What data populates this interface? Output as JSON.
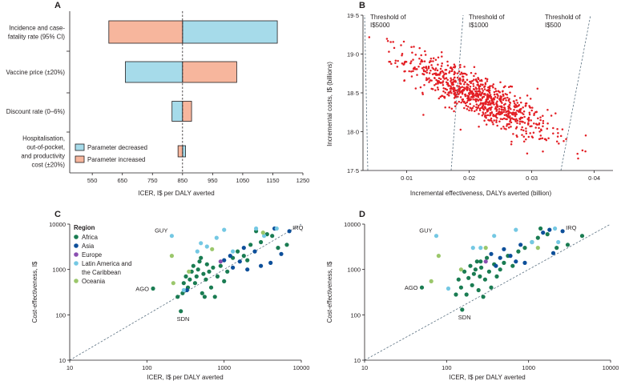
{
  "figure": {
    "colors": {
      "decreased": "#a6dbea",
      "increased": "#f7b69d",
      "scatter_b": "#e31e24",
      "africa": "#1a7c52",
      "asia": "#0d4f9a",
      "europe": "#8a4fb0",
      "latin": "#74c8e3",
      "oceania": "#9bc76b",
      "axis": "#231f20",
      "guide": "#5a7080"
    }
  },
  "chart_data": [
    {
      "panel": "A",
      "type": "bar",
      "subtype": "tornado",
      "xlabel": "ICER, I$ per DALY averted",
      "xlim": [
        475,
        1250
      ],
      "xticks": [
        550,
        650,
        750,
        850,
        950,
        1050,
        1150,
        1250
      ],
      "base_value": 850,
      "categories": [
        [
          "Incidence and case-",
          "fatality rate (95% CI)"
        ],
        [
          "Vaccine price (±20%)"
        ],
        [
          "Discount rate (0–6%)"
        ],
        [
          "Hospitalisation,",
          "out-of-pocket,",
          "and productivity",
          "cost (±20%)"
        ]
      ],
      "series": [
        {
          "name": "Parameter decreased",
          "values": [
            1165,
            660,
            815,
            860
          ]
        },
        {
          "name": "Parameter increased",
          "values": [
            605,
            1030,
            880,
            835
          ]
        }
      ],
      "legend": "bottom-right"
    },
    {
      "panel": "B",
      "type": "scatter",
      "xlabel": "Incremental effectiveness, DALYs averted (billion)",
      "ylabel": "Incremental costs, I$ (billions)",
      "xlim": [
        0.003,
        0.043
      ],
      "ylim": [
        17.5,
        19.5
      ],
      "xticks": [
        "0·01",
        "0·02",
        "0·03",
        "0·04"
      ],
      "yticks": [
        "17·5",
        "18·0",
        "18·5",
        "19·0",
        "19·5"
      ],
      "cloud": {
        "n": 900,
        "x_mean": 0.0215,
        "x_sd": 0.0057,
        "y_center": 18.45,
        "slope": -40,
        "y_sd": 0.14,
        "x_range": [
          0.004,
          0.042
        ],
        "y_range": [
          17.62,
          19.35
        ]
      },
      "thresholds": [
        {
          "label": [
            "Threshold of",
            "I$5000"
          ],
          "wtp": 5000
        },
        {
          "label": [
            "Threshold of",
            "I$1000"
          ],
          "wtp": 1000
        },
        {
          "label": [
            "Threshold of",
            "I$500"
          ],
          "wtp": 500
        }
      ]
    },
    {
      "panel": "C",
      "type": "scatter",
      "xscale": "log",
      "yscale": "log",
      "xlabel": "ICER, I$ per DALY averted",
      "ylabel": "Cost-effectiveness, I$",
      "xlim": [
        10,
        10000
      ],
      "ylim": [
        10,
        10000
      ],
      "xticks": [
        "10",
        "100",
        "1000",
        "10000"
      ],
      "yticks": [
        "10",
        "100",
        "1000",
        "10000"
      ],
      "legend_title": "Region",
      "legend": [
        {
          "key": "africa",
          "label": [
            "Africa"
          ]
        },
        {
          "key": "asia",
          "label": [
            "Asia"
          ]
        },
        {
          "key": "europe",
          "label": [
            "Europe"
          ]
        },
        {
          "key": "latin",
          "label": [
            "Latin America and",
            "the Caribbean"
          ]
        },
        {
          "key": "oceania",
          "label": [
            "Oceania"
          ]
        }
      ],
      "labels": [
        {
          "text": "GUY",
          "x": 210,
          "y": 5500
        },
        {
          "text": "IRQ",
          "x": 7000,
          "y": 7000
        },
        {
          "text": "AGO",
          "x": 120,
          "y": 380
        },
        {
          "text": "SDN",
          "x": 275,
          "y": 120
        }
      ],
      "points": [
        {
          "r": "africa",
          "x": 120,
          "y": 380
        },
        {
          "r": "africa",
          "x": 275,
          "y": 120
        },
        {
          "r": "africa",
          "x": 250,
          "y": 250
        },
        {
          "r": "africa",
          "x": 290,
          "y": 300
        },
        {
          "r": "africa",
          "x": 300,
          "y": 500
        },
        {
          "r": "africa",
          "x": 320,
          "y": 700
        },
        {
          "r": "africa",
          "x": 340,
          "y": 400
        },
        {
          "r": "africa",
          "x": 360,
          "y": 600
        },
        {
          "r": "africa",
          "x": 380,
          "y": 900
        },
        {
          "r": "africa",
          "x": 400,
          "y": 1200
        },
        {
          "r": "africa",
          "x": 420,
          "y": 500
        },
        {
          "r": "africa",
          "x": 440,
          "y": 700
        },
        {
          "r": "africa",
          "x": 460,
          "y": 1000
        },
        {
          "r": "africa",
          "x": 480,
          "y": 1500
        },
        {
          "r": "africa",
          "x": 500,
          "y": 1800
        },
        {
          "r": "africa",
          "x": 520,
          "y": 300
        },
        {
          "r": "africa",
          "x": 540,
          "y": 800
        },
        {
          "r": "africa",
          "x": 560,
          "y": 250
        },
        {
          "r": "africa",
          "x": 580,
          "y": 600
        },
        {
          "r": "africa",
          "x": 600,
          "y": 1300
        },
        {
          "r": "africa",
          "x": 640,
          "y": 900
        },
        {
          "r": "africa",
          "x": 680,
          "y": 400
        },
        {
          "r": "africa",
          "x": 720,
          "y": 1100
        },
        {
          "r": "africa",
          "x": 760,
          "y": 250
        },
        {
          "r": "africa",
          "x": 820,
          "y": 700
        },
        {
          "r": "africa",
          "x": 900,
          "y": 1200
        },
        {
          "r": "africa",
          "x": 1000,
          "y": 550
        },
        {
          "r": "africa",
          "x": 1100,
          "y": 900
        },
        {
          "r": "africa",
          "x": 1300,
          "y": 1800
        },
        {
          "r": "africa",
          "x": 1500,
          "y": 2500
        },
        {
          "r": "africa",
          "x": 1800,
          "y": 2000
        },
        {
          "r": "africa",
          "x": 2200,
          "y": 3500
        },
        {
          "r": "africa",
          "x": 2600,
          "y": 7000
        },
        {
          "r": "africa",
          "x": 3000,
          "y": 4000
        },
        {
          "r": "africa",
          "x": 3600,
          "y": 6000
        },
        {
          "r": "africa",
          "x": 5000,
          "y": 3000
        },
        {
          "r": "africa",
          "x": 6500,
          "y": 3500
        },
        {
          "r": "africa",
          "x": 4200,
          "y": 5500
        },
        {
          "r": "africa",
          "x": 2000,
          "y": 1600
        },
        {
          "r": "asia",
          "x": 7000,
          "y": 7000
        },
        {
          "r": "asia",
          "x": 5500,
          "y": 2200
        },
        {
          "r": "asia",
          "x": 4500,
          "y": 8000
        },
        {
          "r": "asia",
          "x": 4000,
          "y": 1400
        },
        {
          "r": "asia",
          "x": 3000,
          "y": 1200
        },
        {
          "r": "asia",
          "x": 2500,
          "y": 2500
        },
        {
          "r": "asia",
          "x": 2000,
          "y": 1000
        },
        {
          "r": "asia",
          "x": 1600,
          "y": 1500
        },
        {
          "r": "asia",
          "x": 1300,
          "y": 1100
        },
        {
          "r": "asia",
          "x": 1000,
          "y": 1600
        },
        {
          "r": "asia",
          "x": 1800,
          "y": 3000
        },
        {
          "r": "asia",
          "x": 1200,
          "y": 2000
        },
        {
          "r": "asia",
          "x": 330,
          "y": 350
        },
        {
          "r": "europe",
          "x": 900,
          "y": 1500
        },
        {
          "r": "latin",
          "x": 210,
          "y": 5500
        },
        {
          "r": "latin",
          "x": 300,
          "y": 350
        },
        {
          "r": "latin",
          "x": 450,
          "y": 2500
        },
        {
          "r": "latin",
          "x": 500,
          "y": 3800
        },
        {
          "r": "latin",
          "x": 600,
          "y": 3200
        },
        {
          "r": "latin",
          "x": 800,
          "y": 5000
        },
        {
          "r": "latin",
          "x": 1000,
          "y": 7500
        },
        {
          "r": "latin",
          "x": 2600,
          "y": 8000
        },
        {
          "r": "latin",
          "x": 3300,
          "y": 5500
        },
        {
          "r": "latin",
          "x": 4800,
          "y": 8000
        },
        {
          "r": "latin",
          "x": 1300,
          "y": 2500
        },
        {
          "r": "oceania",
          "x": 210,
          "y": 2000
        },
        {
          "r": "oceania",
          "x": 220,
          "y": 500
        },
        {
          "r": "oceania",
          "x": 350,
          "y": 900
        },
        {
          "r": "oceania",
          "x": 700,
          "y": 2800
        },
        {
          "r": "oceania",
          "x": 3200,
          "y": 6500
        }
      ]
    },
    {
      "panel": "D",
      "type": "scatter",
      "xscale": "log",
      "yscale": "log",
      "xlabel": "ICER, I$ per DALY averted",
      "ylabel": "Cost-effectiveness, I$",
      "xlim": [
        10,
        10000
      ],
      "ylim": [
        10,
        10000
      ],
      "xticks": [
        "10",
        "100",
        "1000",
        "10000"
      ],
      "yticks": [
        "10",
        "100",
        "1000",
        "10000"
      ],
      "labels": [
        {
          "text": "GUY",
          "x": 75,
          "y": 5500
        },
        {
          "text": "IRQ",
          "x": 2600,
          "y": 7000
        },
        {
          "text": "AGO",
          "x": 50,
          "y": 400
        },
        {
          "text": "SDN",
          "x": 155,
          "y": 130
        }
      ],
      "points": [
        {
          "r": "africa",
          "x": 50,
          "y": 400
        },
        {
          "r": "africa",
          "x": 155,
          "y": 130
        },
        {
          "r": "africa",
          "x": 130,
          "y": 280
        },
        {
          "r": "africa",
          "x": 140,
          "y": 600
        },
        {
          "r": "africa",
          "x": 150,
          "y": 400
        },
        {
          "r": "africa",
          "x": 165,
          "y": 900
        },
        {
          "r": "africa",
          "x": 175,
          "y": 280
        },
        {
          "r": "africa",
          "x": 185,
          "y": 650
        },
        {
          "r": "africa",
          "x": 195,
          "y": 1200
        },
        {
          "r": "africa",
          "x": 205,
          "y": 450
        },
        {
          "r": "africa",
          "x": 215,
          "y": 800
        },
        {
          "r": "africa",
          "x": 225,
          "y": 1000
        },
        {
          "r": "africa",
          "x": 235,
          "y": 1500
        },
        {
          "r": "africa",
          "x": 245,
          "y": 350
        },
        {
          "r": "africa",
          "x": 255,
          "y": 700
        },
        {
          "r": "africa",
          "x": 265,
          "y": 1100
        },
        {
          "r": "africa",
          "x": 280,
          "y": 250
        },
        {
          "r": "africa",
          "x": 295,
          "y": 600
        },
        {
          "r": "africa",
          "x": 310,
          "y": 1800
        },
        {
          "r": "africa",
          "x": 330,
          "y": 900
        },
        {
          "r": "africa",
          "x": 350,
          "y": 400
        },
        {
          "r": "africa",
          "x": 380,
          "y": 1300
        },
        {
          "r": "africa",
          "x": 410,
          "y": 700
        },
        {
          "r": "africa",
          "x": 450,
          "y": 1000
        },
        {
          "r": "africa",
          "x": 500,
          "y": 1400
        },
        {
          "r": "africa",
          "x": 560,
          "y": 2000
        },
        {
          "r": "africa",
          "x": 640,
          "y": 1200
        },
        {
          "r": "africa",
          "x": 750,
          "y": 2500
        },
        {
          "r": "africa",
          "x": 900,
          "y": 3000
        },
        {
          "r": "africa",
          "x": 1100,
          "y": 4000
        },
        {
          "r": "africa",
          "x": 1400,
          "y": 8000
        },
        {
          "r": "africa",
          "x": 1700,
          "y": 6000
        },
        {
          "r": "africa",
          "x": 2200,
          "y": 3000
        },
        {
          "r": "africa",
          "x": 3000,
          "y": 3500
        },
        {
          "r": "africa",
          "x": 4500,
          "y": 5500
        },
        {
          "r": "africa",
          "x": 1300,
          "y": 5000
        },
        {
          "r": "africa",
          "x": 260,
          "y": 1500
        },
        {
          "r": "asia",
          "x": 2600,
          "y": 7000
        },
        {
          "r": "asia",
          "x": 2000,
          "y": 2300
        },
        {
          "r": "asia",
          "x": 1800,
          "y": 7500
        },
        {
          "r": "asia",
          "x": 1500,
          "y": 6500
        },
        {
          "r": "asia",
          "x": 900,
          "y": 1400
        },
        {
          "r": "asia",
          "x": 800,
          "y": 3500
        },
        {
          "r": "asia",
          "x": 700,
          "y": 1500
        },
        {
          "r": "asia",
          "x": 600,
          "y": 2000
        },
        {
          "r": "asia",
          "x": 500,
          "y": 2800
        },
        {
          "r": "asia",
          "x": 450,
          "y": 1800
        },
        {
          "r": "asia",
          "x": 400,
          "y": 1200
        },
        {
          "r": "asia",
          "x": 350,
          "y": 2200
        },
        {
          "r": "europe",
          "x": 300,
          "y": 1500
        },
        {
          "r": "latin",
          "x": 75,
          "y": 5500
        },
        {
          "r": "latin",
          "x": 105,
          "y": 380
        },
        {
          "r": "latin",
          "x": 210,
          "y": 3000
        },
        {
          "r": "latin",
          "x": 260,
          "y": 3000
        },
        {
          "r": "latin",
          "x": 380,
          "y": 5500
        },
        {
          "r": "latin",
          "x": 700,
          "y": 7500
        },
        {
          "r": "latin",
          "x": 1100,
          "y": 4000
        },
        {
          "r": "latin",
          "x": 2100,
          "y": 8000
        },
        {
          "r": "latin",
          "x": 2300,
          "y": 4000
        },
        {
          "r": "oceania",
          "x": 80,
          "y": 2000
        },
        {
          "r": "oceania",
          "x": 65,
          "y": 550
        },
        {
          "r": "oceania",
          "x": 150,
          "y": 1000
        },
        {
          "r": "oceania",
          "x": 300,
          "y": 3000
        },
        {
          "r": "oceania",
          "x": 1300,
          "y": 3000
        }
      ]
    }
  ]
}
